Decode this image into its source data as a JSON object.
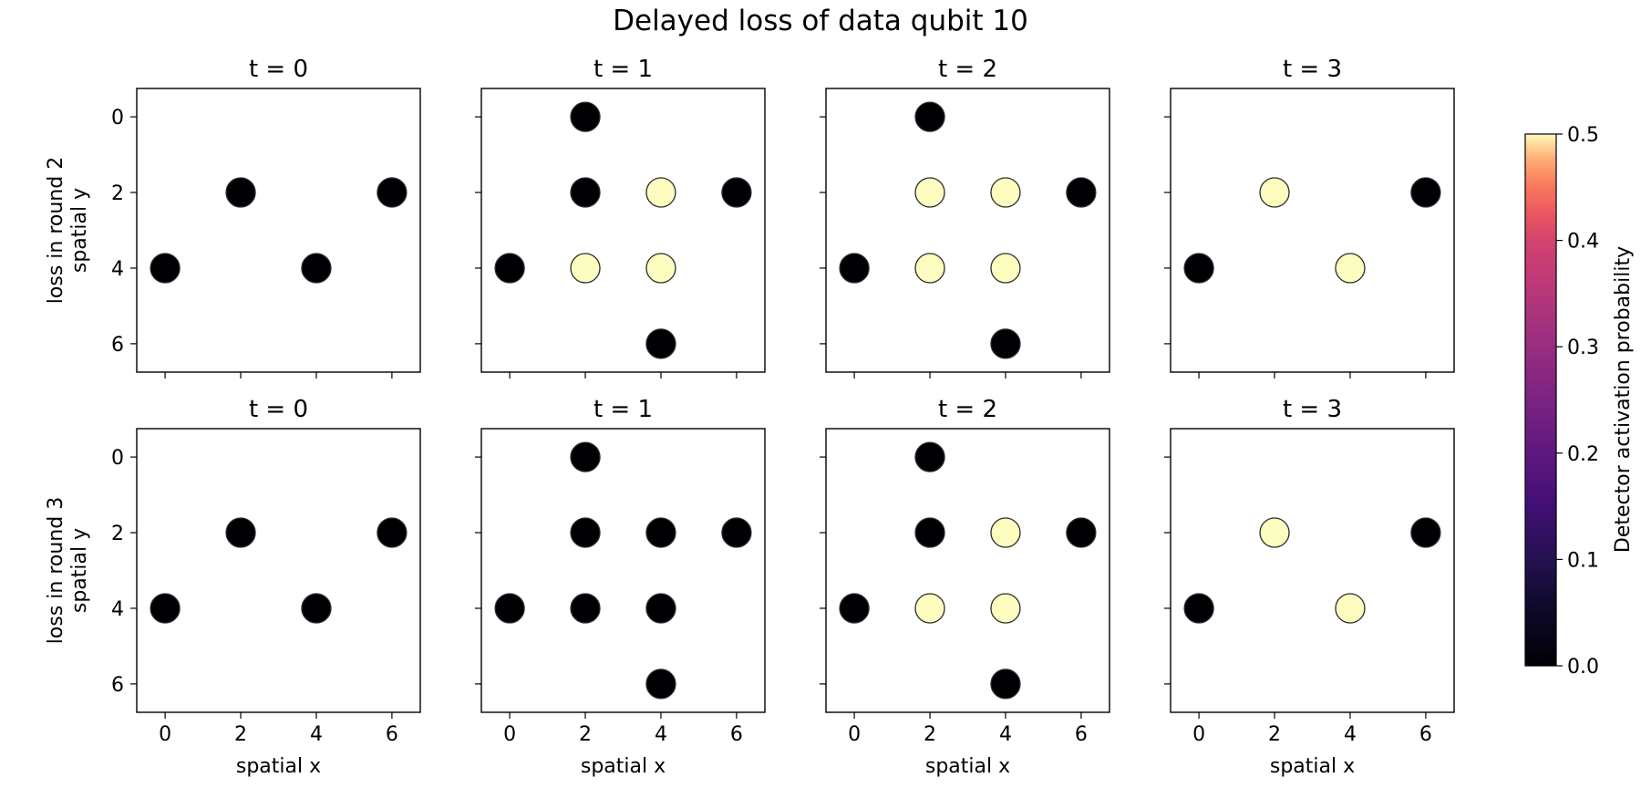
{
  "figure": {
    "title": "Delayed loss of data qubit 10"
  },
  "chart_data": {
    "type": "scatter",
    "title": "Delayed loss of data qubit 10",
    "xlabel": "spatial x",
    "xticks": [
      0,
      2,
      4,
      6
    ],
    "yticks": [
      0,
      2,
      4,
      6
    ],
    "xlim": [
      -0.75,
      6.75
    ],
    "ylim": [
      6.75,
      -0.75
    ],
    "y_inverted": true,
    "colormap": "magma",
    "colorbar": {
      "label": "Detector activation probability",
      "range": [
        0.0,
        0.5
      ],
      "ticks": [
        "0.0",
        "0.1",
        "0.2",
        "0.3",
        "0.4",
        "0.5"
      ]
    },
    "rows": [
      {
        "ylabel_line1": "loss in round 2",
        "ylabel_line2": "spatial y",
        "panels": [
          {
            "title": "t = 0",
            "points": [
              {
                "x": 0,
                "y": 4,
                "p": 0.0
              },
              {
                "x": 2,
                "y": 2,
                "p": 0.0
              },
              {
                "x": 4,
                "y": 4,
                "p": 0.0
              },
              {
                "x": 6,
                "y": 2,
                "p": 0.0
              }
            ]
          },
          {
            "title": "t = 1",
            "points": [
              {
                "x": 2,
                "y": 0,
                "p": 0.0
              },
              {
                "x": 2,
                "y": 2,
                "p": 0.0
              },
              {
                "x": 4,
                "y": 2,
                "p": 0.5
              },
              {
                "x": 6,
                "y": 2,
                "p": 0.0
              },
              {
                "x": 0,
                "y": 4,
                "p": 0.0
              },
              {
                "x": 2,
                "y": 4,
                "p": 0.5
              },
              {
                "x": 4,
                "y": 4,
                "p": 0.5
              },
              {
                "x": 4,
                "y": 6,
                "p": 0.0
              }
            ]
          },
          {
            "title": "t = 2",
            "points": [
              {
                "x": 2,
                "y": 0,
                "p": 0.0
              },
              {
                "x": 2,
                "y": 2,
                "p": 0.5
              },
              {
                "x": 4,
                "y": 2,
                "p": 0.5
              },
              {
                "x": 6,
                "y": 2,
                "p": 0.0
              },
              {
                "x": 0,
                "y": 4,
                "p": 0.0
              },
              {
                "x": 2,
                "y": 4,
                "p": 0.5
              },
              {
                "x": 4,
                "y": 4,
                "p": 0.5
              },
              {
                "x": 4,
                "y": 6,
                "p": 0.0
              }
            ]
          },
          {
            "title": "t = 3",
            "points": [
              {
                "x": 2,
                "y": 2,
                "p": 0.5
              },
              {
                "x": 6,
                "y": 2,
                "p": 0.0
              },
              {
                "x": 0,
                "y": 4,
                "p": 0.0
              },
              {
                "x": 4,
                "y": 4,
                "p": 0.5
              }
            ]
          }
        ]
      },
      {
        "ylabel_line1": "loss in round 3",
        "ylabel_line2": "spatial y",
        "panels": [
          {
            "title": "t = 0",
            "points": [
              {
                "x": 0,
                "y": 4,
                "p": 0.0
              },
              {
                "x": 2,
                "y": 2,
                "p": 0.0
              },
              {
                "x": 4,
                "y": 4,
                "p": 0.0
              },
              {
                "x": 6,
                "y": 2,
                "p": 0.0
              }
            ]
          },
          {
            "title": "t = 1",
            "points": [
              {
                "x": 2,
                "y": 0,
                "p": 0.0
              },
              {
                "x": 2,
                "y": 2,
                "p": 0.0
              },
              {
                "x": 4,
                "y": 2,
                "p": 0.0
              },
              {
                "x": 6,
                "y": 2,
                "p": 0.0
              },
              {
                "x": 0,
                "y": 4,
                "p": 0.0
              },
              {
                "x": 2,
                "y": 4,
                "p": 0.0
              },
              {
                "x": 4,
                "y": 4,
                "p": 0.0
              },
              {
                "x": 4,
                "y": 6,
                "p": 0.0
              }
            ]
          },
          {
            "title": "t = 2",
            "points": [
              {
                "x": 2,
                "y": 0,
                "p": 0.0
              },
              {
                "x": 2,
                "y": 2,
                "p": 0.0
              },
              {
                "x": 4,
                "y": 2,
                "p": 0.5
              },
              {
                "x": 6,
                "y": 2,
                "p": 0.0
              },
              {
                "x": 0,
                "y": 4,
                "p": 0.0
              },
              {
                "x": 2,
                "y": 4,
                "p": 0.5
              },
              {
                "x": 4,
                "y": 4,
                "p": 0.5
              },
              {
                "x": 4,
                "y": 6,
                "p": 0.0
              }
            ]
          },
          {
            "title": "t = 3",
            "points": [
              {
                "x": 2,
                "y": 2,
                "p": 0.5
              },
              {
                "x": 6,
                "y": 2,
                "p": 0.0
              },
              {
                "x": 0,
                "y": 4,
                "p": 0.0
              },
              {
                "x": 4,
                "y": 4,
                "p": 0.5
              }
            ]
          }
        ]
      }
    ]
  }
}
